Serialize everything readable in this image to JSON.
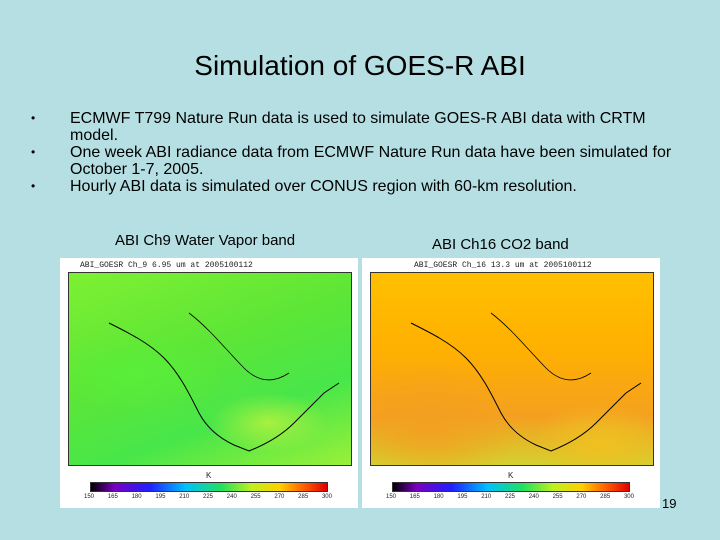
{
  "slide": {
    "title": "Simulation of GOES-R ABI",
    "page_number": "19"
  },
  "bullets": [
    {
      "mark": "•",
      "text": "ECMWF T799 Nature Run data is used to simulate GOES-R ABI data with CRTM model."
    },
    {
      "mark": "•",
      "text": "One week ABI radiance data from ECMWF Nature Run data have been simulated for October 1-7, 2005."
    },
    {
      "mark": "•",
      "text": "Hourly ABI data is simulated over CONUS region with 60-km resolution."
    }
  ],
  "figures": [
    {
      "caption": "ABI Ch9 Water Vapor band",
      "plot_title": "ABI_GOESR Ch_9 6.95 um at 2005100112",
      "unit": "K",
      "ticks": [
        "150",
        "165",
        "180",
        "195",
        "210",
        "225",
        "240",
        "255",
        "270",
        "285",
        "300"
      ]
    },
    {
      "caption": "ABI Ch16 CO2 band",
      "plot_title": "ABI_GOESR Ch_16 13.3 um at 2005100112",
      "unit": "K",
      "ticks": [
        "150",
        "165",
        "180",
        "195",
        "210",
        "225",
        "240",
        "255",
        "270",
        "285",
        "300"
      ]
    }
  ]
}
